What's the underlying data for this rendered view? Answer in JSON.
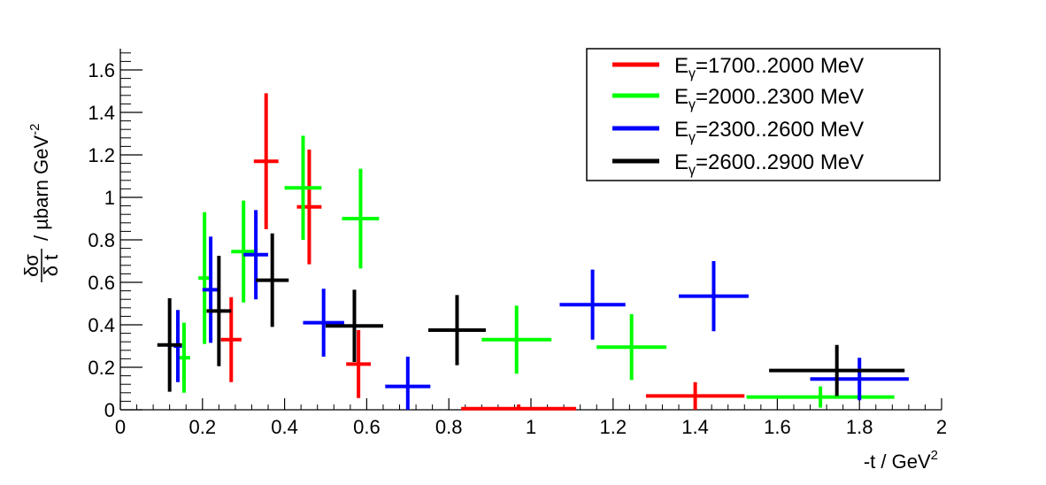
{
  "chart_data": {
    "type": "scatter",
    "title": "",
    "xlabel": "-t / GeV",
    "xlabel_sup": "2",
    "ylabel_main": "µbarn GeV",
    "ylabel_sup": "-2",
    "ylabel_frac_num": "δσ",
    "ylabel_frac_den": "δ t",
    "xlim": [
      0,
      2
    ],
    "ylim": [
      0,
      1.7
    ],
    "x_ticks": [
      0,
      0.2,
      0.4,
      0.6,
      0.8,
      1,
      1.2,
      1.4,
      1.6,
      1.8,
      2
    ],
    "x_tick_labels": [
      "0",
      "0.2",
      "0.4",
      "0.6",
      "0.8",
      "1",
      "1.2",
      "1.4",
      "1.6",
      "1.8",
      "2"
    ],
    "y_ticks": [
      0,
      0.2,
      0.4,
      0.6,
      0.8,
      1,
      1.2,
      1.4,
      1.6
    ],
    "y_tick_labels": [
      "0",
      "0.2",
      "0.4",
      "0.6",
      "0.8",
      "1",
      "1.2",
      "1.4",
      "1.6"
    ],
    "grid": false,
    "legend_position": "top-right",
    "series": [
      {
        "name_prefix": "E",
        "name_sub": "γ",
        "name_suffix": "=1700..2000 MeV",
        "color": "#ff0000",
        "points": [
          {
            "x": 0.27,
            "y": 0.33,
            "xerr": 0.025,
            "yerr": 0.2
          },
          {
            "x": 0.355,
            "y": 1.17,
            "xerr": 0.03,
            "yerr": 0.32
          },
          {
            "x": 0.46,
            "y": 0.955,
            "xerr": 0.03,
            "yerr": 0.27
          },
          {
            "x": 0.58,
            "y": 0.215,
            "xerr": 0.03,
            "yerr": 0.16
          },
          {
            "x": 0.97,
            "y": 0.005,
            "xerr": 0.14,
            "yerr": 0.02
          },
          {
            "x": 1.4,
            "y": 0.065,
            "xerr": 0.12,
            "yerr": 0.065
          }
        ]
      },
      {
        "name_prefix": "E",
        "name_sub": "γ",
        "name_suffix": "=2000..2300 MeV",
        "color": "#00ff00",
        "points": [
          {
            "x": 0.155,
            "y": 0.245,
            "xerr": 0.015,
            "yerr": 0.165
          },
          {
            "x": 0.205,
            "y": 0.62,
            "xerr": 0.015,
            "yerr": 0.31
          },
          {
            "x": 0.3,
            "y": 0.745,
            "xerr": 0.03,
            "yerr": 0.24
          },
          {
            "x": 0.445,
            "y": 1.045,
            "xerr": 0.045,
            "yerr": 0.245
          },
          {
            "x": 0.585,
            "y": 0.9,
            "xerr": 0.045,
            "yerr": 0.235
          },
          {
            "x": 0.965,
            "y": 0.33,
            "xerr": 0.085,
            "yerr": 0.16
          },
          {
            "x": 1.245,
            "y": 0.295,
            "xerr": 0.085,
            "yerr": 0.155
          },
          {
            "x": 1.705,
            "y": 0.06,
            "xerr": 0.18,
            "yerr": 0.05
          }
        ]
      },
      {
        "name_prefix": "E",
        "name_sub": "γ",
        "name_suffix": "=2300..2600 MeV",
        "color": "#0000ff",
        "points": [
          {
            "x": 0.14,
            "y": 0.3,
            "xerr": 0.01,
            "yerr": 0.17
          },
          {
            "x": 0.22,
            "y": 0.565,
            "xerr": 0.02,
            "yerr": 0.25
          },
          {
            "x": 0.33,
            "y": 0.73,
            "xerr": 0.03,
            "yerr": 0.21
          },
          {
            "x": 0.495,
            "y": 0.41,
            "xerr": 0.05,
            "yerr": 0.16
          },
          {
            "x": 0.7,
            "y": 0.11,
            "xerr": 0.055,
            "yerr": 0.14
          },
          {
            "x": 1.15,
            "y": 0.495,
            "xerr": 0.08,
            "yerr": 0.165
          },
          {
            "x": 1.445,
            "y": 0.535,
            "xerr": 0.085,
            "yerr": 0.165
          },
          {
            "x": 1.8,
            "y": 0.145,
            "xerr": 0.12,
            "yerr": 0.1
          }
        ]
      },
      {
        "name_prefix": "E",
        "name_sub": "γ",
        "name_suffix": "=2600..2900 MeV",
        "color": "#000000",
        "points": [
          {
            "x": 0.12,
            "y": 0.305,
            "xerr": 0.03,
            "yerr": 0.22
          },
          {
            "x": 0.24,
            "y": 0.465,
            "xerr": 0.03,
            "yerr": 0.26
          },
          {
            "x": 0.37,
            "y": 0.61,
            "xerr": 0.04,
            "yerr": 0.22
          },
          {
            "x": 0.57,
            "y": 0.395,
            "xerr": 0.07,
            "yerr": 0.17
          },
          {
            "x": 0.82,
            "y": 0.375,
            "xerr": 0.07,
            "yerr": 0.165
          },
          {
            "x": 1.745,
            "y": 0.185,
            "xerr": 0.165,
            "yerr": 0.12
          }
        ]
      }
    ]
  }
}
